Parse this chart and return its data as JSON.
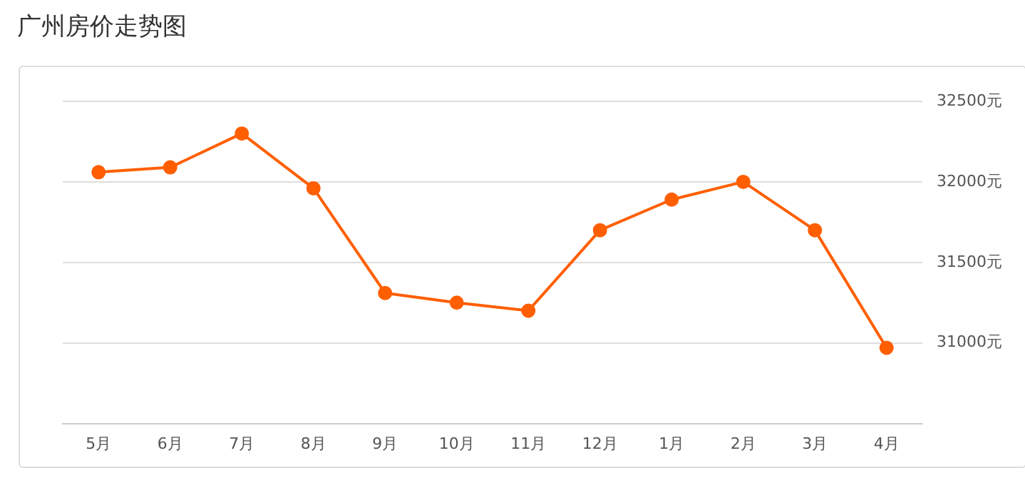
{
  "chart_data": {
    "type": "line",
    "title": "广州房价走势图",
    "categories": [
      "5月",
      "6月",
      "7月",
      "8月",
      "9月",
      "10月",
      "11月",
      "12月",
      "1月",
      "2月",
      "3月",
      "4月"
    ],
    "series": [
      {
        "color": "#ff5f00",
        "values": [
          32060,
          32090,
          32300,
          31960,
          31310,
          31250,
          31200,
          31700,
          31890,
          32000,
          31700,
          30970
        ]
      }
    ],
    "ylim": [
      30500,
      32500
    ],
    "yticks": [
      {
        "value": 31000,
        "label": "31000元"
      },
      {
        "value": 31500,
        "label": "31500元"
      },
      {
        "value": 32000,
        "label": "32000元"
      },
      {
        "value": 32500,
        "label": "32500元"
      }
    ],
    "grid": "y",
    "marker": "circle",
    "line_style": "solid",
    "legend": false
  }
}
